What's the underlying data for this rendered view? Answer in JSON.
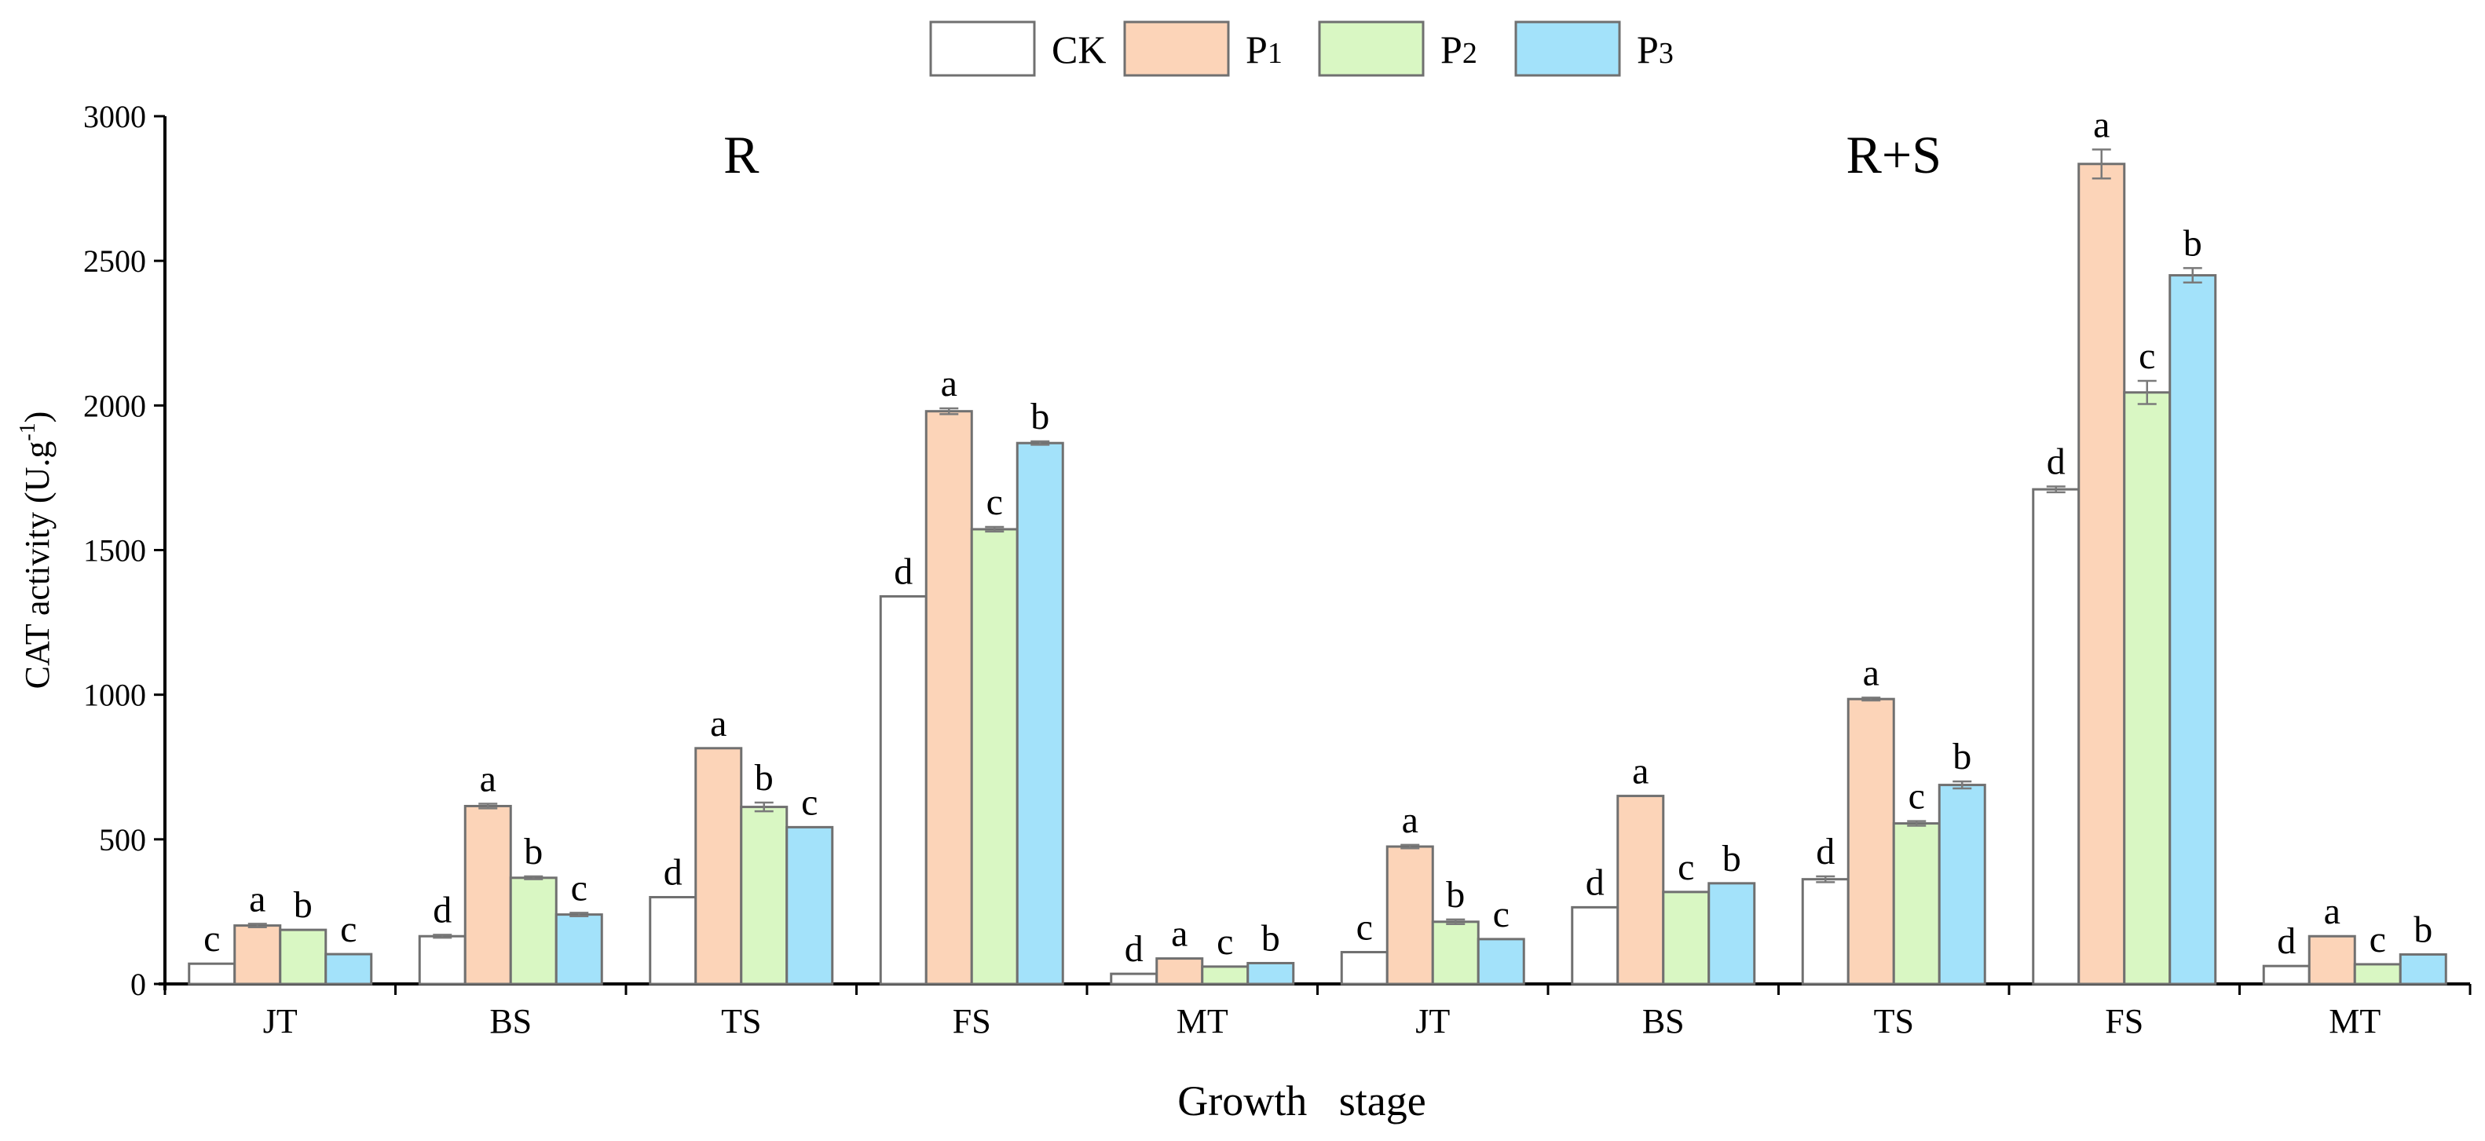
{
  "chart_data": {
    "type": "bar",
    "title": "",
    "xlabel": "Growth   stage",
    "ylabel": "CAT activity (U.g",
    "ylabel_sup": "-1",
    "ylabel_close": ")",
    "ylim": [
      0,
      3000
    ],
    "yticks": [
      0,
      500,
      1000,
      1500,
      2000,
      2500,
      3000
    ],
    "ytick_labels": [
      "0",
      "500",
      "1000",
      "1500",
      "2000",
      "2500",
      "3000"
    ],
    "categories": [
      "JT",
      "BS",
      "TS",
      "FS",
      "MT",
      "JT",
      "BS",
      "TS",
      "FS",
      "MT"
    ],
    "panels": [
      {
        "label": "R",
        "from": 0,
        "to": 4
      },
      {
        "label": "R+S",
        "from": 5,
        "to": 9
      }
    ],
    "legend_position": "top-center",
    "series": [
      {
        "name": "CK",
        "name_main": "CK",
        "name_sub": "",
        "color": "#ffffff",
        "values": [
          70,
          165,
          300,
          1340,
          35,
          110,
          265,
          362,
          1710,
          62
        ],
        "errors": [
          0,
          5,
          0,
          0,
          0,
          0,
          0,
          10,
          10,
          0
        ],
        "letters": [
          "c",
          "d",
          "d",
          "d",
          "d",
          "c",
          "d",
          "d",
          "d",
          "d"
        ]
      },
      {
        "name": "P1",
        "name_main": "P",
        "name_sub": "1",
        "color": "#fcd4b8",
        "values": [
          202,
          615,
          815,
          1980,
          88,
          475,
          650,
          985,
          2835,
          165
        ],
        "errors": [
          6,
          8,
          0,
          10,
          0,
          6,
          0,
          5,
          50,
          0
        ],
        "letters": [
          "a",
          "a",
          "a",
          "a",
          "a",
          "a",
          "a",
          "a",
          "a",
          "a"
        ]
      },
      {
        "name": "P2",
        "name_main": "P",
        "name_sub": "2",
        "color": "#d9f7c3",
        "values": [
          187,
          367,
          612,
          1572,
          60,
          215,
          318,
          555,
          2045,
          68
        ],
        "errors": [
          0,
          5,
          15,
          8,
          0,
          8,
          0,
          8,
          40,
          0
        ],
        "letters": [
          "b",
          "b",
          "b",
          "c",
          "c",
          "b",
          "c",
          "c",
          "c",
          "c"
        ]
      },
      {
        "name": "P3",
        "name_main": "P",
        "name_sub": "3",
        "color": "#a3e2fa",
        "values": [
          103,
          240,
          542,
          1870,
          72,
          155,
          348,
          688,
          2450,
          102
        ],
        "errors": [
          0,
          6,
          0,
          6,
          0,
          0,
          0,
          12,
          25,
          0
        ],
        "letters": [
          "c",
          "c",
          "c",
          "b",
          "b",
          "c",
          "b",
          "b",
          "b",
          "b"
        ]
      }
    ]
  }
}
